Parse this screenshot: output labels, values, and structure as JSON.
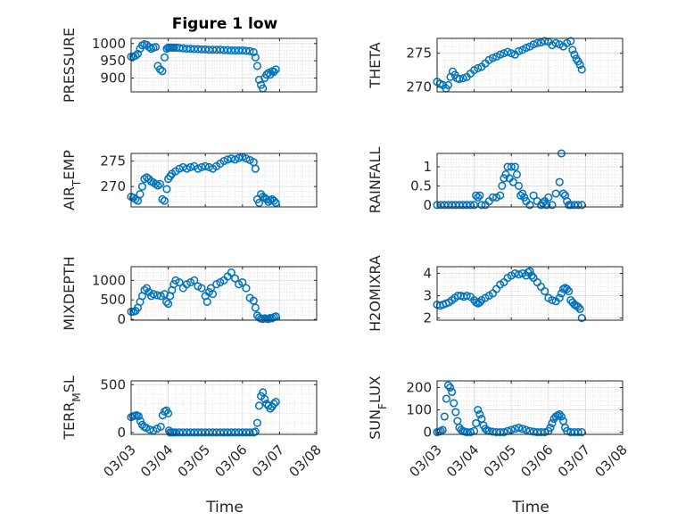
{
  "figure": {
    "title": "Figure 1 low",
    "xlabel": "Time"
  },
  "chart_data": [
    {
      "type": "scatter",
      "ylabel": "PRESSURE",
      "xlim": [
        0,
        5
      ],
      "ylim": [
        860,
        1015
      ],
      "yticks": [
        900,
        950,
        1000
      ],
      "xticks": [],
      "x": [
        0.0,
        0.06,
        0.12,
        0.18,
        0.24,
        0.3,
        0.36,
        0.42,
        0.48,
        0.54,
        0.6,
        0.66,
        0.72,
        0.78,
        0.84,
        0.9,
        0.96,
        1.0,
        1.04,
        1.08,
        1.12,
        1.16,
        1.22,
        1.3,
        1.4,
        1.5,
        1.6,
        1.7,
        1.8,
        1.9,
        2.0,
        2.1,
        2.2,
        2.3,
        2.4,
        2.5,
        2.6,
        2.7,
        2.8,
        2.9,
        3.0,
        3.1,
        3.2,
        3.3,
        3.35,
        3.4,
        3.45,
        3.5,
        3.55,
        3.6,
        3.65,
        3.7,
        3.75,
        3.8,
        3.85,
        3.9
      ],
      "values": [
        962,
        962,
        965,
        970,
        985,
        995,
        998,
        996,
        990,
        985,
        988,
        990,
        935,
        925,
        920,
        960,
        985,
        988,
        988,
        988,
        988,
        988,
        988,
        987,
        986,
        985,
        985,
        984,
        984,
        983,
        983,
        982,
        982,
        982,
        982,
        981,
        981,
        980,
        980,
        980,
        980,
        979,
        978,
        975,
        960,
        935,
        895,
        880,
        870,
        900,
        910,
        915,
        910,
        920,
        918,
        925
      ]
    },
    {
      "type": "scatter",
      "ylabel": "THETA",
      "xlim": [
        0,
        5
      ],
      "ylim": [
        269.3,
        277.2
      ],
      "yticks": [
        270,
        275
      ],
      "xticks": [],
      "x": [
        0.0,
        0.08,
        0.16,
        0.24,
        0.3,
        0.36,
        0.42,
        0.48,
        0.54,
        0.6,
        0.7,
        0.8,
        0.9,
        1.0,
        1.1,
        1.2,
        1.3,
        1.4,
        1.5,
        1.6,
        1.7,
        1.8,
        1.9,
        2.0,
        2.1,
        2.2,
        2.3,
        2.4,
        2.5,
        2.6,
        2.7,
        2.8,
        2.9,
        3.0,
        3.1,
        3.2,
        3.3,
        3.4,
        3.5,
        3.6,
        3.65,
        3.7,
        3.75,
        3.8,
        3.85,
        3.9
      ],
      "values": [
        270.8,
        270.5,
        270.3,
        269.8,
        270.3,
        271.5,
        272.3,
        271.8,
        271.3,
        271.2,
        271.3,
        271.5,
        272.0,
        272.5,
        272.8,
        273.0,
        273.5,
        274.0,
        274.3,
        274.5,
        274.8,
        275.0,
        275.2,
        275.0,
        274.8,
        275.3,
        275.5,
        275.8,
        276.0,
        276.3,
        276.5,
        276.6,
        276.8,
        276.7,
        276.2,
        276.5,
        276.3,
        276.0,
        276.5,
        276.8,
        275.5,
        274.8,
        274.2,
        273.8,
        273.3,
        272.6
      ]
    },
    {
      "type": "scatter",
      "ylabel": "AIR_TEMP",
      "xlim": [
        0,
        5
      ],
      "ylim": [
        266,
        276.5
      ],
      "yticks": [
        270,
        275
      ],
      "xticks": [],
      "x": [
        0.0,
        0.06,
        0.12,
        0.18,
        0.24,
        0.3,
        0.36,
        0.42,
        0.48,
        0.54,
        0.6,
        0.66,
        0.72,
        0.78,
        0.84,
        0.9,
        0.96,
        1.0,
        1.05,
        1.1,
        1.2,
        1.3,
        1.4,
        1.5,
        1.6,
        1.7,
        1.8,
        1.9,
        2.0,
        2.1,
        2.2,
        2.3,
        2.4,
        2.5,
        2.6,
        2.7,
        2.8,
        2.9,
        3.0,
        3.1,
        3.2,
        3.3,
        3.35,
        3.4,
        3.45,
        3.5,
        3.55,
        3.6,
        3.65,
        3.7,
        3.75,
        3.8,
        3.85,
        3.9
      ],
      "values": [
        268.0,
        267.8,
        267.5,
        267.2,
        268.5,
        270.0,
        271.5,
        271.8,
        271.5,
        271.0,
        270.8,
        270.5,
        270.2,
        270.5,
        267.5,
        267.2,
        269.5,
        271.5,
        272.0,
        272.5,
        273.0,
        273.5,
        273.8,
        273.5,
        273.8,
        274.0,
        273.5,
        273.8,
        274.0,
        273.8,
        273.5,
        274.0,
        274.5,
        275.0,
        275.3,
        275.5,
        275.3,
        275.6,
        275.8,
        275.5,
        275.2,
        274.8,
        273.5,
        267.5,
        266.8,
        268.5,
        268.0,
        267.8,
        267.5,
        267.0,
        267.3,
        267.5,
        267.2,
        266.8
      ]
    },
    {
      "type": "scatter",
      "ylabel": "RAINFALL",
      "xlim": [
        0,
        5
      ],
      "ylim": [
        -0.05,
        1.35
      ],
      "yticks": [
        0,
        0.5,
        1
      ],
      "xticks": [],
      "x": [
        0.0,
        0.1,
        0.2,
        0.3,
        0.4,
        0.5,
        0.6,
        0.7,
        0.8,
        0.9,
        1.0,
        1.05,
        1.1,
        1.15,
        1.2,
        1.3,
        1.4,
        1.5,
        1.6,
        1.7,
        1.75,
        1.8,
        1.85,
        1.9,
        1.95,
        2.0,
        2.05,
        2.1,
        2.15,
        2.2,
        2.25,
        2.3,
        2.35,
        2.4,
        2.5,
        2.6,
        2.7,
        2.8,
        2.85,
        2.9,
        2.95,
        3.0,
        3.1,
        3.2,
        3.3,
        3.35,
        3.4,
        3.45,
        3.5,
        3.55,
        3.6,
        3.7,
        3.8,
        3.9
      ],
      "values": [
        0,
        0,
        0,
        0,
        0,
        0,
        0,
        0,
        0,
        0,
        0,
        0.25,
        0.2,
        0.25,
        0,
        0,
        0.1,
        0.2,
        0.2,
        0.25,
        0.5,
        0.7,
        0.8,
        1.0,
        0.7,
        1.0,
        0.6,
        1.0,
        0.8,
        0.5,
        0.25,
        0.3,
        0.2,
        0.1,
        0,
        0.25,
        0.1,
        0,
        0.05,
        0.1,
        0,
        0.2,
        0,
        0.3,
        0.6,
        1.35,
        0.3,
        0.25,
        0.1,
        0,
        0,
        0,
        0,
        0
      ]
    },
    {
      "type": "scatter",
      "ylabel": "MIXDEPTH",
      "xlim": [
        0,
        5
      ],
      "ylim": [
        -20,
        1350
      ],
      "yticks": [
        0,
        500,
        1000
      ],
      "xticks": [],
      "x": [
        0.0,
        0.06,
        0.12,
        0.18,
        0.24,
        0.3,
        0.36,
        0.42,
        0.48,
        0.54,
        0.6,
        0.7,
        0.8,
        0.9,
        0.95,
        1.0,
        1.05,
        1.1,
        1.15,
        1.2,
        1.3,
        1.4,
        1.5,
        1.6,
        1.7,
        1.8,
        1.9,
        2.0,
        2.05,
        2.1,
        2.15,
        2.2,
        2.3,
        2.4,
        2.5,
        2.6,
        2.7,
        2.8,
        2.9,
        3.0,
        3.1,
        3.2,
        3.3,
        3.35,
        3.4,
        3.45,
        3.5,
        3.55,
        3.6,
        3.65,
        3.7,
        3.75,
        3.8,
        3.85,
        3.9
      ],
      "values": [
        200,
        200,
        220,
        300,
        450,
        600,
        750,
        800,
        700,
        600,
        650,
        620,
        600,
        650,
        450,
        400,
        600,
        750,
        900,
        1000,
        950,
        800,
        900,
        950,
        1000,
        850,
        800,
        600,
        450,
        700,
        800,
        650,
        900,
        950,
        1000,
        1100,
        1200,
        1050,
        900,
        950,
        800,
        550,
        480,
        300,
        100,
        50,
        20,
        10,
        30,
        20,
        10,
        40,
        30,
        60,
        80
      ]
    },
    {
      "type": "scatter",
      "ylabel": "H2OMIXRA",
      "xlim": [
        0,
        5
      ],
      "ylim": [
        1.9,
        4.3
      ],
      "yticks": [
        2,
        3,
        4
      ],
      "xticks": [],
      "x": [
        0.0,
        0.08,
        0.16,
        0.24,
        0.32,
        0.4,
        0.48,
        0.56,
        0.64,
        0.72,
        0.8,
        0.9,
        1.0,
        1.05,
        1.1,
        1.15,
        1.2,
        1.3,
        1.4,
        1.5,
        1.6,
        1.7,
        1.8,
        1.9,
        2.0,
        2.1,
        2.2,
        2.3,
        2.4,
        2.45,
        2.5,
        2.55,
        2.6,
        2.7,
        2.8,
        2.9,
        3.0,
        3.1,
        3.2,
        3.3,
        3.35,
        3.4,
        3.45,
        3.5,
        3.55,
        3.6,
        3.65,
        3.7,
        3.75,
        3.8,
        3.85,
        3.9
      ],
      "values": [
        2.6,
        2.55,
        2.6,
        2.65,
        2.7,
        2.8,
        2.9,
        3.0,
        3.0,
        2.95,
        3.0,
        2.95,
        2.8,
        2.7,
        2.65,
        2.7,
        2.8,
        2.9,
        3.0,
        3.1,
        3.3,
        3.5,
        3.6,
        3.8,
        3.9,
        4.0,
        3.95,
        4.0,
        3.9,
        4.05,
        4.1,
        3.9,
        3.8,
        3.6,
        3.4,
        3.2,
        2.9,
        2.8,
        2.75,
        2.9,
        3.1,
        3.3,
        3.35,
        3.3,
        3.2,
        2.8,
        2.7,
        2.6,
        2.55,
        2.5,
        2.4,
        2.0
      ]
    },
    {
      "type": "scatter",
      "ylabel": "TERR_MSL",
      "xlim": [
        0,
        5
      ],
      "ylim": [
        -20,
        540
      ],
      "yticks": [
        0,
        500
      ],
      "xticks": [
        "03/03",
        "03/04",
        "03/05",
        "03/06",
        "03/07",
        "03/08"
      ],
      "x": [
        0.0,
        0.05,
        0.1,
        0.15,
        0.2,
        0.25,
        0.3,
        0.35,
        0.4,
        0.5,
        0.6,
        0.7,
        0.8,
        0.85,
        0.9,
        0.95,
        1.0,
        1.02,
        1.05,
        1.1,
        1.15,
        1.2,
        1.3,
        1.4,
        1.5,
        1.6,
        1.7,
        1.8,
        1.9,
        2.0,
        2.1,
        2.2,
        2.3,
        2.4,
        2.5,
        2.6,
        2.7,
        2.8,
        2.9,
        3.0,
        3.1,
        3.2,
        3.3,
        3.35,
        3.4,
        3.45,
        3.5,
        3.55,
        3.6,
        3.65,
        3.7,
        3.75,
        3.8,
        3.85,
        3.9
      ],
      "values": [
        160,
        170,
        175,
        180,
        170,
        120,
        80,
        60,
        50,
        30,
        20,
        40,
        60,
        180,
        220,
        230,
        200,
        20,
        0,
        0,
        0,
        0,
        0,
        0,
        0,
        0,
        0,
        0,
        0,
        0,
        0,
        0,
        0,
        0,
        0,
        0,
        0,
        0,
        0,
        0,
        0,
        0,
        0,
        10,
        100,
        280,
        380,
        420,
        350,
        300,
        280,
        250,
        270,
        300,
        320
      ]
    },
    {
      "type": "scatter",
      "ylabel": "SUN_FLUX",
      "xlim": [
        0,
        5
      ],
      "ylim": [
        -10,
        230
      ],
      "yticks": [
        0,
        100,
        200
      ],
      "xticks": [
        "03/03",
        "03/04",
        "03/05",
        "03/06",
        "03/07",
        "03/08"
      ],
      "x": [
        0.0,
        0.05,
        0.1,
        0.15,
        0.2,
        0.25,
        0.3,
        0.35,
        0.4,
        0.45,
        0.5,
        0.55,
        0.6,
        0.65,
        0.7,
        0.75,
        0.8,
        0.9,
        1.0,
        1.05,
        1.1,
        1.15,
        1.2,
        1.25,
        1.3,
        1.35,
        1.4,
        1.5,
        1.6,
        1.7,
        1.8,
        1.9,
        2.0,
        2.1,
        2.2,
        2.3,
        2.4,
        2.5,
        2.6,
        2.7,
        2.8,
        2.9,
        3.0,
        3.05,
        3.1,
        3.15,
        3.2,
        3.25,
        3.3,
        3.35,
        3.4,
        3.45,
        3.5,
        3.6,
        3.7,
        3.8,
        3.9
      ],
      "values": [
        0,
        2,
        5,
        10,
        70,
        150,
        210,
        200,
        180,
        130,
        90,
        50,
        20,
        10,
        5,
        2,
        0,
        0,
        5,
        40,
        100,
        80,
        60,
        30,
        15,
        8,
        5,
        2,
        0,
        0,
        0,
        5,
        10,
        15,
        20,
        15,
        10,
        5,
        2,
        0,
        0,
        0,
        5,
        20,
        40,
        60,
        70,
        75,
        80,
        70,
        50,
        20,
        5,
        0,
        0,
        0,
        0
      ]
    }
  ]
}
